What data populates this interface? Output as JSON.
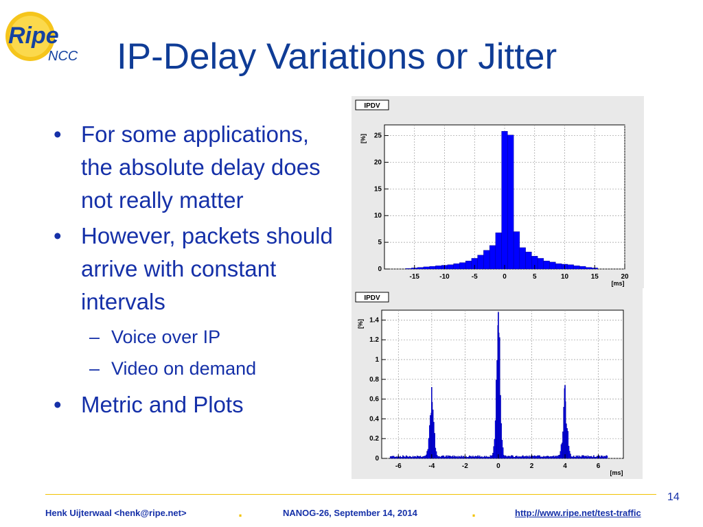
{
  "slide": {
    "title": "IP-Delay Variations or Jitter",
    "page_number": "14"
  },
  "logo": {
    "text_main": "Ripe",
    "text_sub": "NCC"
  },
  "bullets": {
    "b1": "For some applications, the absolute delay does not really matter",
    "b2": "However, packets should arrive with constant intervals",
    "sub1": "Voice over IP",
    "sub2": "Video on demand",
    "b3": "Metric and Plots",
    "bullet_glyph": "•",
    "dash_glyph": "–"
  },
  "footer": {
    "author": "Henk Uijterwaal <henk@ripe.net>",
    "event": "NANOG-26, September 14, 2014",
    "link": "http://www.ripe.net/test-traffic",
    "separator": "."
  },
  "colors": {
    "title": "#0f3c96",
    "text": "#1530a8",
    "bar_fill": "#0000ff",
    "bar_edge": "#000080",
    "footer_rule": "#f2c200"
  },
  "chart_data": [
    {
      "type": "bar",
      "title": "IPDV",
      "ylabel": "[%]",
      "xlabel": "[ms]",
      "xlim": [
        -20,
        20
      ],
      "ylim": [
        0,
        27
      ],
      "xticks": [
        -15,
        -10,
        -5,
        0,
        5,
        10,
        15,
        20
      ],
      "yticks": [
        0,
        5,
        10,
        15,
        20,
        25
      ],
      "grid": true,
      "bin_width": 1,
      "x": [
        -16,
        -15,
        -14,
        -13,
        -12,
        -11,
        -10,
        -9,
        -8,
        -7,
        -6,
        -5,
        -4,
        -3,
        -2,
        -1,
        0,
        1,
        2,
        3,
        4,
        5,
        6,
        7,
        8,
        9,
        10,
        11,
        12,
        13,
        14,
        15
      ],
      "values": [
        0.1,
        0.2,
        0.3,
        0.4,
        0.5,
        0.6,
        0.7,
        0.8,
        1.0,
        1.2,
        1.5,
        2.0,
        2.6,
        3.5,
        4.4,
        6.8,
        25.8,
        25.1,
        7.0,
        4.0,
        3.2,
        2.4,
        2.0,
        1.5,
        1.3,
        1.0,
        0.9,
        0.8,
        0.6,
        0.5,
        0.3,
        0.2
      ]
    },
    {
      "type": "bar",
      "title": "IPDV",
      "ylabel": "[%]",
      "xlabel": "[ms]",
      "xlim": [
        -7,
        7.5
      ],
      "ylim": [
        0,
        1.5
      ],
      "xticks": [
        -6,
        -4,
        -2,
        0,
        2,
        4,
        6
      ],
      "yticks": [
        0,
        0.2,
        0.4,
        0.6,
        0.8,
        1,
        1.2,
        1.4
      ],
      "grid": true,
      "bin_width": 0.05,
      "peaks": [
        {
          "center": -4,
          "height": 0.72
        },
        {
          "center": 0,
          "height": 1.48
        },
        {
          "center": 4,
          "height": 0.74
        }
      ]
    }
  ]
}
